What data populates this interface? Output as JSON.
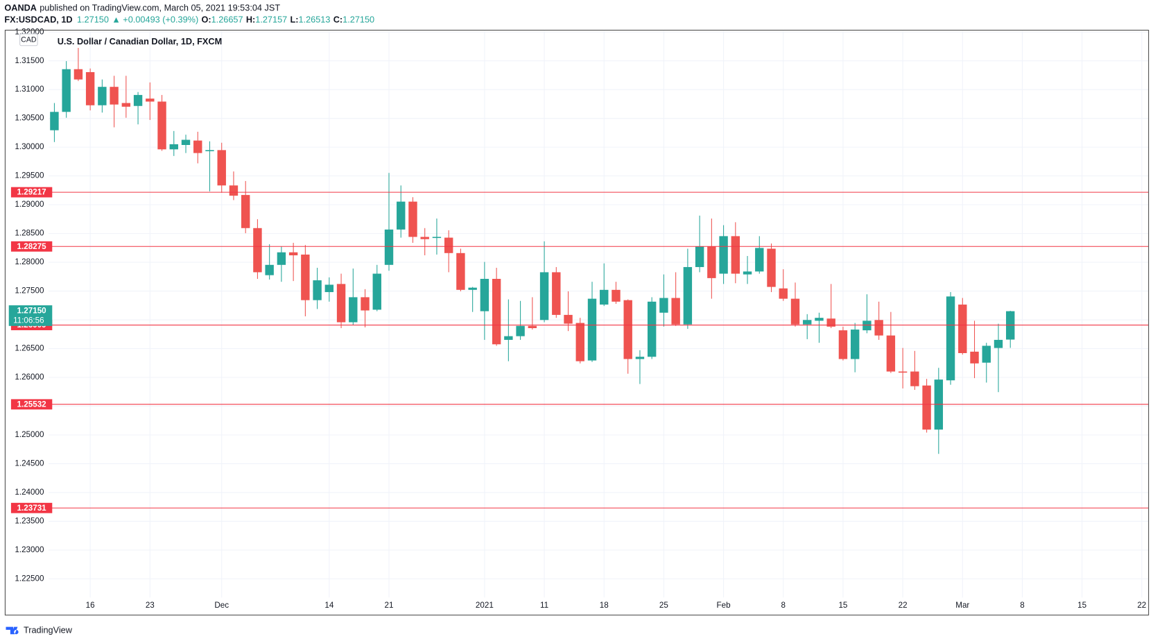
{
  "header": {
    "publisher": "OANDA",
    "published": "published on TradingView.com, March 05, 2021 19:53:04 JST",
    "symbol": "FX:USDCAD, 1D",
    "last": "1.27150",
    "change": "▲ +0.00493 (+0.39%)",
    "ohlc": [
      {
        "label": "O:",
        "value": "1.26657"
      },
      {
        "label": "H:",
        "value": "1.27157"
      },
      {
        "label": "L:",
        "value": "1.26513"
      },
      {
        "label": "C:",
        "value": "1.27150"
      }
    ]
  },
  "chart_data": {
    "type": "candlestick",
    "title": "U.S. Dollar / Canadian Dollar, 1D, FXCM",
    "currency": "CAD",
    "up_color": "#26a69a",
    "down_color": "#ef5350",
    "level_color": "#f23645",
    "grid": true,
    "open": [
      1.30294,
      1.30613,
      1.31355,
      1.31304,
      1.30728,
      1.31048,
      1.30767,
      1.30716,
      1.30844,
      1.30792,
      1.29962,
      1.30038,
      1.30115,
      1.29936,
      1.29949,
      1.29335,
      1.29169,
      1.28594,
      1.27776,
      1.27955,
      1.28173,
      1.28134,
      1.27342,
      1.27482,
      1.27623,
      1.26958,
      1.27393,
      1.27176,
      1.27955,
      1.28569,
      1.29054,
      1.28441,
      1.28428,
      1.28428,
      1.2816,
      1.27521,
      1.2715,
      1.27712,
      1.26652,
      1.26716,
      1.26895,
      1.26997,
      1.27827,
      1.27086,
      1.26946,
      1.26294,
      1.27265,
      1.27521,
      1.27342,
      1.26319,
      1.26358,
      1.27124,
      1.2738,
      1.2692,
      1.27917,
      1.28275,
      1.27802,
      1.28454,
      1.27789,
      1.2784,
      1.28236,
      1.27546,
      1.27367,
      1.2692,
      1.26984,
      1.27022,
      1.26818,
      1.26319,
      1.26818,
      1.26997,
      1.26728,
      1.26102,
      1.26102,
      1.25859,
      1.25093,
      1.25949,
      1.27265,
      1.26447,
      1.26256,
      1.26511,
      1.26657
    ],
    "high": [
      1.30767,
      1.31495,
      1.31725,
      1.31367,
      1.31176,
      1.3124,
      1.3124,
      1.30958,
      1.31125,
      1.30907,
      1.30281,
      1.30217,
      1.30268,
      1.30102,
      1.30077,
      1.29578,
      1.29412,
      1.28748,
      1.28313,
      1.28275,
      1.28338,
      1.283,
      1.27904,
      1.27738,
      1.27802,
      1.27891,
      1.27533,
      1.27955,
      1.29553,
      1.29335,
      1.29131,
      1.28594,
      1.2876,
      1.28556,
      1.28236,
      1.27572,
      1.28006,
      1.27904,
      1.27355,
      1.27329,
      1.27393,
      1.28364,
      1.27917,
      1.27495,
      1.27035,
      1.27661,
      1.27981,
      1.27661,
      1.27355,
      1.26473,
      1.27393,
      1.27789,
      1.27827,
      1.28236,
      1.28811,
      1.2876,
      1.28645,
      1.28696,
      1.28109,
      1.28454,
      1.28326,
      1.27879,
      1.27648,
      1.27099,
      1.27124,
      1.27623,
      1.26882,
      1.26946,
      1.27444,
      1.27316,
      1.27137,
      1.26511,
      1.2646,
      1.25974,
      1.26166,
      1.27482,
      1.2738,
      1.26984,
      1.26601,
      1.26933,
      1.27157
    ],
    "low": [
      1.30089,
      1.30511,
      1.3115,
      1.30639,
      1.30601,
      1.30345,
      1.30511,
      1.30396,
      1.30473,
      1.29936,
      1.29847,
      1.29898,
      1.29719,
      1.29233,
      1.29208,
      1.2908,
      1.28505,
      1.27712,
      1.277,
      1.27661,
      1.27674,
      1.27061,
      1.27188,
      1.27316,
      1.26856,
      1.26907,
      1.26869,
      1.2715,
      1.27853,
      1.28428,
      1.28338,
      1.28121,
      1.28134,
      1.27827,
      1.27495,
      1.27137,
      1.26652,
      1.26549,
      1.26281,
      1.26652,
      1.26831,
      1.26958,
      1.27035,
      1.26805,
      1.26243,
      1.26268,
      1.2724,
      1.27278,
      1.26064,
      1.25885,
      1.26319,
      1.26882,
      1.26894,
      1.26843,
      1.27827,
      1.27367,
      1.27623,
      1.27636,
      1.27623,
      1.27802,
      1.27482,
      1.27329,
      1.26882,
      1.26664,
      1.26601,
      1.26856,
      1.26294,
      1.26089,
      1.26767,
      1.26652,
      1.26077,
      1.25808,
      1.25783,
      1.25041,
      1.24671,
      1.25872,
      1.26396,
      1.25987,
      1.2591,
      1.25744,
      1.26513
    ],
    "close": [
      1.30613,
      1.31355,
      1.31176,
      1.30728,
      1.31048,
      1.30741,
      1.30703,
      1.30907,
      1.30792,
      1.29962,
      1.30051,
      1.30128,
      1.29898,
      1.29949,
      1.29335,
      1.29157,
      1.28594,
      1.27827,
      1.27955,
      1.28173,
      1.28121,
      1.27342,
      1.27687,
      1.2761,
      1.26958,
      1.27393,
      1.27163,
      1.27802,
      1.28569,
      1.29054,
      1.28441,
      1.28402,
      1.28441,
      1.2816,
      1.27521,
      1.27559,
      1.27712,
      1.26575,
      1.26716,
      1.26895,
      1.26856,
      1.27827,
      1.27086,
      1.26933,
      1.26281,
      1.27367,
      1.27521,
      1.27316,
      1.26319,
      1.26358,
      1.27316,
      1.2738,
      1.2692,
      1.27917,
      1.28275,
      1.27725,
      1.28454,
      1.27802,
      1.2784,
      1.28249,
      1.27572,
      1.27367,
      1.2692,
      1.26997,
      1.27035,
      1.26882,
      1.26319,
      1.26831,
      1.26984,
      1.26728,
      1.26102,
      1.26089,
      1.25847,
      1.25093,
      1.25962,
      1.27406,
      1.26422,
      1.26243,
      1.26549,
      1.26652,
      1.2715
    ],
    "ylim": [
      1.2187,
      1.3202
    ],
    "yticks": [
      {
        "value": 1.225,
        "label": "1.22500"
      },
      {
        "value": 1.23,
        "label": "1.23000"
      },
      {
        "value": 1.235,
        "label": "1.23500"
      },
      {
        "value": 1.24,
        "label": "1.24000"
      },
      {
        "value": 1.245,
        "label": "1.24500"
      },
      {
        "value": 1.25,
        "label": "1.25000"
      },
      {
        "value": 1.255,
        "label": "1.25500"
      },
      {
        "value": 1.26,
        "label": "1.26000"
      },
      {
        "value": 1.265,
        "label": "1.26500"
      },
      {
        "value": 1.27,
        "label": "1.27000"
      },
      {
        "value": 1.275,
        "label": "1.27500"
      },
      {
        "value": 1.28,
        "label": "1.28000"
      },
      {
        "value": 1.285,
        "label": "1.28500"
      },
      {
        "value": 1.29,
        "label": "1.29000"
      },
      {
        "value": 1.295,
        "label": "1.29500"
      },
      {
        "value": 1.3,
        "label": "1.30000"
      },
      {
        "value": 1.305,
        "label": "1.30500"
      },
      {
        "value": 1.31,
        "label": "1.31000"
      },
      {
        "value": 1.315,
        "label": "1.31500"
      },
      {
        "value": 1.32,
        "label": "1.32000"
      }
    ],
    "xlim": [
      -4.12,
      91.57
    ],
    "xticks": [
      {
        "value": 3,
        "label": "16"
      },
      {
        "value": 8,
        "label": "23"
      },
      {
        "value": 14,
        "label": "Dec"
      },
      {
        "value": 23,
        "label": "14"
      },
      {
        "value": 28,
        "label": "21"
      },
      {
        "value": 36,
        "label": "2021"
      },
      {
        "value": 41,
        "label": "11"
      },
      {
        "value": 46,
        "label": "18"
      },
      {
        "value": 51,
        "label": "25"
      },
      {
        "value": 56,
        "label": "Feb"
      },
      {
        "value": 61,
        "label": "8"
      },
      {
        "value": 66,
        "label": "15"
      },
      {
        "value": 71,
        "label": "22"
      },
      {
        "value": 76,
        "label": "Mar"
      },
      {
        "value": 81,
        "label": "8"
      },
      {
        "value": 86,
        "label": "15"
      },
      {
        "value": 91,
        "label": "22"
      }
    ],
    "levels": [
      1.29217,
      1.28275,
      1.26909,
      1.25532,
      1.23731
    ],
    "last_price": {
      "value": 1.2715,
      "label": "1.27150",
      "countdown": "11:06:56"
    }
  },
  "footer": {
    "brand": "TradingView"
  }
}
